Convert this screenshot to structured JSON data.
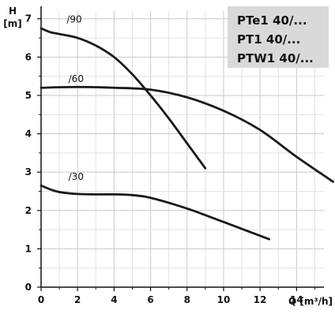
{
  "chart_data": {
    "type": "line",
    "ylabel": "H",
    "ylabel_unit": "[m]",
    "xlabel": "Q [m³/h]",
    "xlim": [
      0,
      15.5
    ],
    "ylim": [
      0,
      7.2
    ],
    "x_ticks": [
      "0",
      "2",
      "4",
      "6",
      "8",
      "10",
      "12",
      "14"
    ],
    "y_ticks": [
      "0",
      "1",
      "2",
      "3",
      "4",
      "5",
      "6",
      "7"
    ],
    "grid": true,
    "legend_placement": "top-right",
    "legend_lines": [
      "PTe1 40/...",
      "PT1 40/...",
      "PTW1 40/..."
    ],
    "series": [
      {
        "name": "/90",
        "x": [
          0,
          0.5,
          1,
          2,
          3,
          4,
          5,
          6,
          7,
          8,
          9
        ],
        "y": [
          6.75,
          6.65,
          6.6,
          6.5,
          6.3,
          6.0,
          5.55,
          5.0,
          4.4,
          3.75,
          3.1
        ]
      },
      {
        "name": "/60",
        "x": [
          0,
          2,
          4,
          6,
          8,
          10,
          12,
          14,
          16
        ],
        "y": [
          5.2,
          5.22,
          5.2,
          5.15,
          4.95,
          4.6,
          4.1,
          3.4,
          2.75
        ]
      },
      {
        "name": "/30",
        "x": [
          0,
          0.5,
          1,
          2,
          3,
          4,
          5,
          6,
          8,
          10,
          12.5
        ],
        "y": [
          2.65,
          2.55,
          2.48,
          2.43,
          2.42,
          2.42,
          2.4,
          2.33,
          2.05,
          1.7,
          1.25
        ]
      }
    ],
    "curve_labels": [
      {
        "text": "/90",
        "x": 1.4,
        "y": 6.9
      },
      {
        "text": "/60",
        "x": 1.5,
        "y": 5.35
      },
      {
        "text": "/30",
        "x": 1.5,
        "y": 2.8
      }
    ]
  }
}
